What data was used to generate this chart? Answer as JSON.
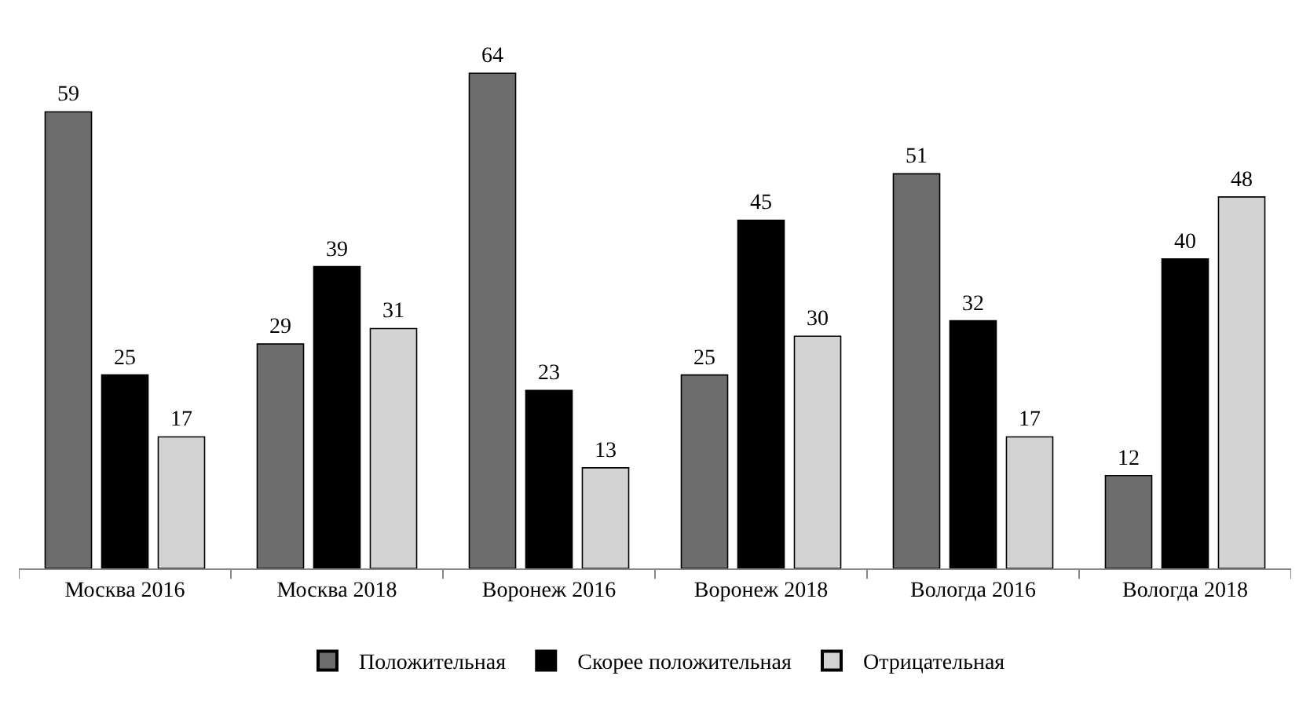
{
  "chart_data": {
    "type": "bar",
    "categories": [
      "Москва 2016",
      "Москва 2018",
      "Воронеж 2016",
      "Воронеж 2018",
      "Вологда 2016",
      "Вологда 2018"
    ],
    "series": [
      {
        "name": "Положительная",
        "color": "#6d6d6d",
        "values": [
          59,
          29,
          64,
          25,
          51,
          12
        ]
      },
      {
        "name": "Скорее положительная",
        "color": "#000000",
        "values": [
          25,
          39,
          23,
          45,
          32,
          40
        ]
      },
      {
        "name": "Отрицательная",
        "color": "#d3d3d3",
        "values": [
          17,
          31,
          13,
          30,
          17,
          48
        ]
      }
    ],
    "data_labels": true,
    "legend": "bottom"
  }
}
